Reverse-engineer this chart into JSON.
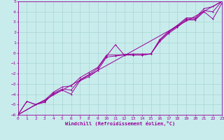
{
  "title": "",
  "xlabel": "Windchill (Refroidissement éolien,°C)",
  "ylabel": "",
  "xlim": [
    0,
    23
  ],
  "ylim": [
    -6,
    5
  ],
  "xticks": [
    0,
    1,
    2,
    3,
    4,
    5,
    6,
    7,
    8,
    9,
    10,
    11,
    12,
    13,
    14,
    15,
    16,
    17,
    18,
    19,
    20,
    21,
    22,
    23
  ],
  "yticks": [
    -6,
    -5,
    -4,
    -3,
    -2,
    -1,
    0,
    1,
    2,
    3,
    4,
    5
  ],
  "bg_color": "#c8ecec",
  "grid_color": "#aad4d4",
  "line_color": "#990099",
  "series1_x": [
    0,
    1,
    2,
    3,
    4,
    5,
    6,
    7,
    8,
    9,
    10,
    11,
    12,
    13,
    14,
    15,
    16,
    17,
    18,
    19,
    20,
    21,
    22,
    23
  ],
  "series1_y": [
    -6.0,
    -4.7,
    -5.0,
    -4.8,
    -3.9,
    -3.5,
    -3.6,
    -2.6,
    -2.1,
    -1.5,
    -0.3,
    0.8,
    -0.2,
    -0.2,
    -0.2,
    -0.1,
    1.2,
    2.0,
    2.6,
    3.3,
    3.3,
    4.1,
    4.0,
    5.0
  ],
  "series2_x": [
    0,
    1,
    2,
    3,
    4,
    5,
    6,
    7,
    8,
    9,
    10,
    11,
    12,
    13,
    14,
    15,
    16,
    17,
    18,
    19,
    20,
    21,
    22,
    23
  ],
  "series2_y": [
    -6.0,
    -4.7,
    -5.0,
    -4.6,
    -3.8,
    -3.3,
    -3.2,
    -2.4,
    -1.9,
    -1.4,
    -0.2,
    -0.2,
    -0.15,
    -0.1,
    -0.1,
    -0.1,
    1.3,
    2.1,
    2.7,
    3.4,
    3.4,
    4.3,
    4.5,
    5.0
  ],
  "series3_x": [
    0,
    2,
    3,
    4,
    5,
    6,
    7,
    8,
    9,
    10,
    11,
    12,
    13,
    14,
    15,
    16,
    17,
    18,
    19,
    20,
    21,
    22,
    23
  ],
  "series3_y": [
    -6.0,
    -5.0,
    -4.7,
    -4.0,
    -3.6,
    -4.0,
    -2.7,
    -2.3,
    -1.7,
    -0.4,
    -0.3,
    -0.2,
    -0.2,
    -0.2,
    -0.1,
    1.1,
    1.9,
    2.5,
    3.2,
    3.2,
    4.0,
    3.3,
    4.8
  ],
  "series4_x": [
    0,
    23
  ],
  "series4_y": [
    -6.0,
    5.0
  ]
}
